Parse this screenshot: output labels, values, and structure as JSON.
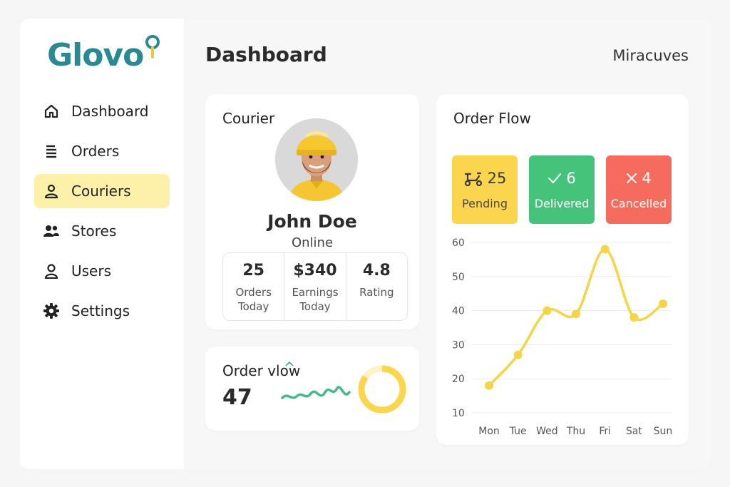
{
  "app": {
    "logo_text": "Glovo",
    "page_title": "Dashboard",
    "user_name": "Miracuves"
  },
  "sidebar": {
    "items": [
      {
        "label": "Dashboard",
        "icon": "home-icon",
        "active": false
      },
      {
        "label": "Orders",
        "icon": "list-icon",
        "active": false
      },
      {
        "label": "Couriers",
        "icon": "user-icon",
        "active": true
      },
      {
        "label": "Stores",
        "icon": "users-icon",
        "active": false
      },
      {
        "label": "Users",
        "icon": "user-icon",
        "active": false
      },
      {
        "label": "Settings",
        "icon": "gear-icon",
        "active": false
      }
    ]
  },
  "courier_card": {
    "title": "Courier",
    "name": "John Doe",
    "status": "Online",
    "stats": [
      {
        "value": "25",
        "label_line1": "Orders",
        "label_line2": "Today"
      },
      {
        "value": "$340",
        "label_line1": "Earnings",
        "label_line2": "Today"
      },
      {
        "value": "4.8",
        "label_line1": "Rating",
        "label_line2": ""
      }
    ]
  },
  "order_vlow_card": {
    "title": "Order vlow",
    "value": "47",
    "ring_progress": 0.85
  },
  "order_flow_card": {
    "title": "Order Flow",
    "tiles": [
      {
        "count": "25",
        "label": "Pending",
        "icon": "scooter-icon",
        "color": "#fbd54e"
      },
      {
        "count": "6",
        "label": "Delivered",
        "icon": "check-icon",
        "color": "#46c37b"
      },
      {
        "count": "4",
        "label": "Cancelled",
        "icon": "close-icon",
        "color": "#f56b5e"
      }
    ]
  },
  "colors": {
    "accent": "#fbd54e",
    "brand": "#2a8a93",
    "active_nav": "#fdf0a8",
    "line": "#f5d547",
    "sparkline": "#46b88a"
  },
  "chart_data": {
    "type": "line",
    "categories": [
      "Mon",
      "Tue",
      "Wed",
      "Thu",
      "Fri",
      "Sat",
      "Sun"
    ],
    "series": [
      {
        "values": [
          18,
          27,
          40,
          39,
          58,
          38,
          42
        ]
      }
    ],
    "y_ticks": [
      "60",
      "50",
      "40",
      "30",
      "20",
      "10"
    ],
    "ylim": [
      10,
      60
    ],
    "grid": true
  }
}
